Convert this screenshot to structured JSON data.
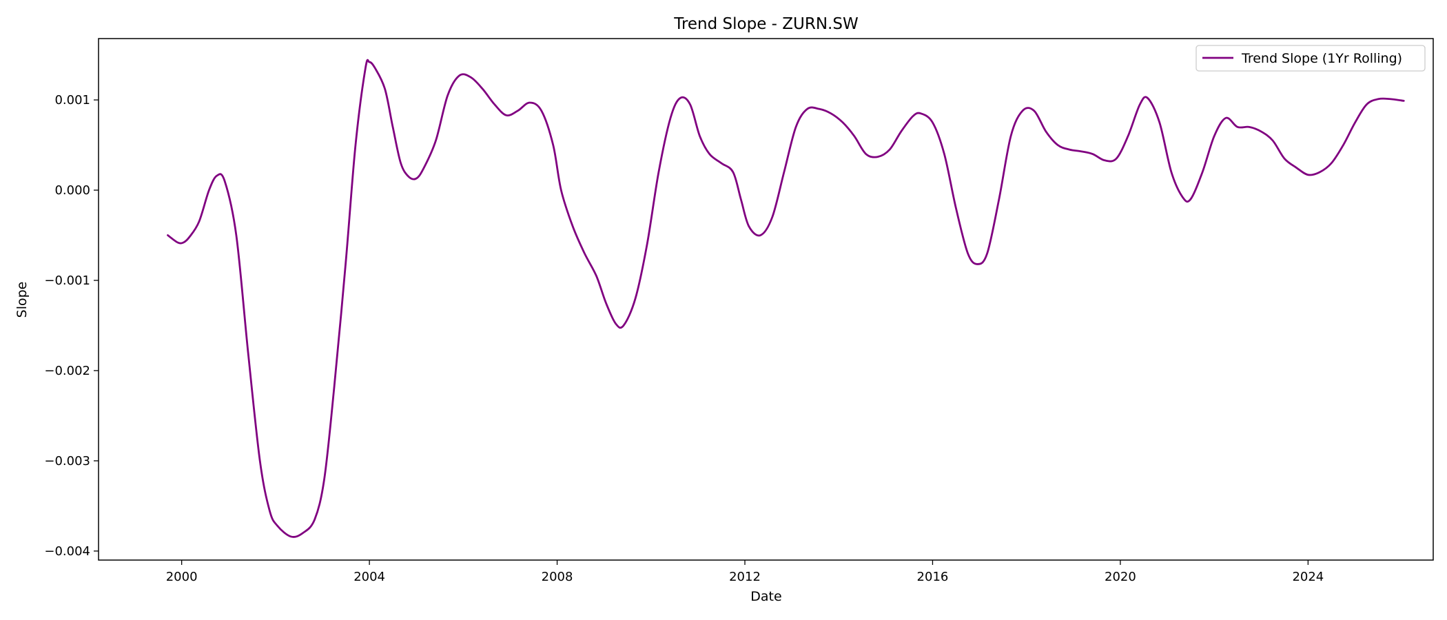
{
  "chart_data": {
    "type": "line",
    "title": "Trend Slope - ZURN.SW",
    "xlabel": "Date",
    "ylabel": "Slope",
    "x_axis_type": "date",
    "xlim": [
      "1998-03-25",
      "2026-09-01"
    ],
    "ylim": [
      -0.0041,
      0.00168
    ],
    "x_ticks": [
      "2000-01-01",
      "2004-01-01",
      "2008-01-01",
      "2012-01-01",
      "2016-01-01",
      "2020-01-01",
      "2024-01-01"
    ],
    "x_tick_labels": [
      "2000",
      "2004",
      "2008",
      "2012",
      "2016",
      "2020",
      "2024"
    ],
    "y_ticks": [
      0.001,
      0.0,
      -0.001,
      -0.002,
      -0.003,
      -0.004
    ],
    "y_tick_labels": [
      "0.001",
      "0.000",
      "−0.001",
      "−0.002",
      "−0.003",
      "−0.004"
    ],
    "grid": false,
    "legend": {
      "placement": "top-right"
    },
    "series": [
      {
        "name": "Trend Slope (1Yr Rolling)",
        "color": "#800080",
        "points": [
          [
            "1999-09-15",
            -0.0005
          ],
          [
            "1999-12-01",
            -0.00058
          ],
          [
            "2000-01-15",
            -0.00058
          ],
          [
            "2000-03-01",
            -0.00052
          ],
          [
            "2000-05-15",
            -0.00035
          ],
          [
            "2000-08-01",
            0.0
          ],
          [
            "2000-10-01",
            0.00016
          ],
          [
            "2000-12-01",
            0.0001
          ],
          [
            "2001-03-01",
            -0.0005
          ],
          [
            "2001-06-01",
            -0.0018
          ],
          [
            "2001-09-01",
            -0.003
          ],
          [
            "2001-11-15",
            -0.00355
          ],
          [
            "2002-01-15",
            -0.00372
          ],
          [
            "2002-05-01",
            -0.00384
          ],
          [
            "2002-08-01",
            -0.0038
          ],
          [
            "2002-11-01",
            -0.00365
          ],
          [
            "2003-01-15",
            -0.0032
          ],
          [
            "2003-04-01",
            -0.0022
          ],
          [
            "2003-07-01",
            -0.0008
          ],
          [
            "2003-09-15",
            0.0005
          ],
          [
            "2003-12-01",
            0.00135
          ],
          [
            "2004-01-01",
            0.00142
          ],
          [
            "2004-02-15",
            0.00135
          ],
          [
            "2004-05-01",
            0.00112
          ],
          [
            "2004-07-01",
            0.0007
          ],
          [
            "2004-09-01",
            0.0003
          ],
          [
            "2004-11-01",
            0.00015
          ],
          [
            "2005-01-01",
            0.00013
          ],
          [
            "2005-03-01",
            0.00025
          ],
          [
            "2005-06-01",
            0.00055
          ],
          [
            "2005-09-01",
            0.00105
          ],
          [
            "2005-12-01",
            0.00127
          ],
          [
            "2006-03-01",
            0.00125
          ],
          [
            "2006-06-01",
            0.00112
          ],
          [
            "2006-09-01",
            0.00095
          ],
          [
            "2006-12-01",
            0.00083
          ],
          [
            "2007-03-01",
            0.00088
          ],
          [
            "2007-06-01",
            0.00097
          ],
          [
            "2007-09-01",
            0.00088
          ],
          [
            "2007-12-01",
            0.0005
          ],
          [
            "2008-02-01",
            0.0
          ],
          [
            "2008-05-01",
            -0.0004
          ],
          [
            "2008-08-01",
            -0.0007
          ],
          [
            "2008-11-01",
            -0.00095
          ],
          [
            "2009-01-15",
            -0.00125
          ],
          [
            "2009-04-01",
            -0.00148
          ],
          [
            "2009-06-01",
            -0.0015
          ],
          [
            "2009-09-01",
            -0.0012
          ],
          [
            "2009-12-01",
            -0.0006
          ],
          [
            "2010-03-01",
            0.0002
          ],
          [
            "2010-06-01",
            0.0008
          ],
          [
            "2010-08-15",
            0.00102
          ],
          [
            "2010-11-01",
            0.00095
          ],
          [
            "2011-01-15",
            0.0006
          ],
          [
            "2011-04-01",
            0.0004
          ],
          [
            "2011-07-01",
            0.0003
          ],
          [
            "2011-10-01",
            0.0002
          ],
          [
            "2011-12-01",
            -0.0001
          ],
          [
            "2012-02-01",
            -0.0004
          ],
          [
            "2012-05-01",
            -0.0005
          ],
          [
            "2012-08-01",
            -0.0003
          ],
          [
            "2012-11-01",
            0.0002
          ],
          [
            "2013-02-01",
            0.0007
          ],
          [
            "2013-05-01",
            0.0009
          ],
          [
            "2013-08-01",
            0.0009
          ],
          [
            "2013-11-01",
            0.00085
          ],
          [
            "2014-02-01",
            0.00075
          ],
          [
            "2014-05-01",
            0.0006
          ],
          [
            "2014-08-01",
            0.0004
          ],
          [
            "2014-11-01",
            0.00037
          ],
          [
            "2015-02-01",
            0.00045
          ],
          [
            "2015-05-01",
            0.00065
          ],
          [
            "2015-08-01",
            0.00082
          ],
          [
            "2015-10-01",
            0.00085
          ],
          [
            "2016-01-01",
            0.00075
          ],
          [
            "2016-04-01",
            0.0004
          ],
          [
            "2016-07-01",
            -0.0002
          ],
          [
            "2016-10-01",
            -0.0007
          ],
          [
            "2016-12-15",
            -0.00082
          ],
          [
            "2017-03-01",
            -0.0007
          ],
          [
            "2017-06-01",
            -0.0001
          ],
          [
            "2017-09-01",
            0.0006
          ],
          [
            "2017-12-01",
            0.00088
          ],
          [
            "2018-03-01",
            0.00088
          ],
          [
            "2018-06-01",
            0.00065
          ],
          [
            "2018-09-01",
            0.0005
          ],
          [
            "2018-12-01",
            0.00045
          ],
          [
            "2019-03-01",
            0.00043
          ],
          [
            "2019-06-01",
            0.0004
          ],
          [
            "2019-09-01",
            0.00033
          ],
          [
            "2019-12-01",
            0.00035
          ],
          [
            "2020-03-01",
            0.0006
          ],
          [
            "2020-06-01",
            0.00095
          ],
          [
            "2020-08-01",
            0.00102
          ],
          [
            "2020-11-01",
            0.00075
          ],
          [
            "2021-02-01",
            0.0002
          ],
          [
            "2021-05-01",
            -8e-05
          ],
          [
            "2021-07-01",
            -0.0001
          ],
          [
            "2021-10-01",
            0.0002
          ],
          [
            "2022-01-01",
            0.0006
          ],
          [
            "2022-04-01",
            0.0008
          ],
          [
            "2022-07-01",
            0.0007
          ],
          [
            "2022-10-01",
            0.0007
          ],
          [
            "2023-01-01",
            0.00065
          ],
          [
            "2023-04-01",
            0.00055
          ],
          [
            "2023-07-01",
            0.00035
          ],
          [
            "2023-10-01",
            0.00025
          ],
          [
            "2024-01-01",
            0.00017
          ],
          [
            "2024-04-01",
            0.0002
          ],
          [
            "2024-07-01",
            0.0003
          ],
          [
            "2024-10-01",
            0.0005
          ],
          [
            "2025-01-01",
            0.00075
          ],
          [
            "2025-04-01",
            0.00095
          ],
          [
            "2025-07-01",
            0.00101
          ],
          [
            "2025-10-01",
            0.00101
          ],
          [
            "2026-01-15",
            0.00099
          ]
        ]
      }
    ]
  }
}
